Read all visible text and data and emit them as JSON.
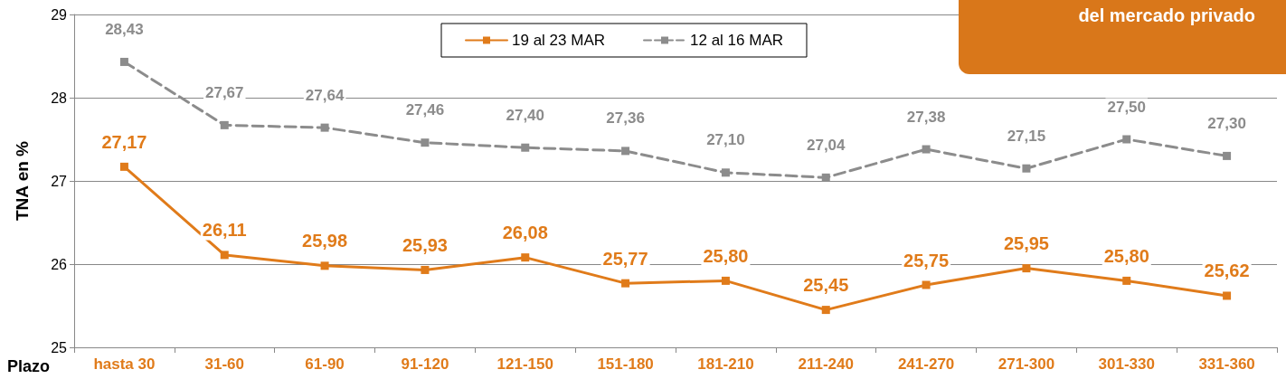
{
  "chart_data": {
    "type": "line",
    "title": "del mercado privado",
    "xlabel": "Plazo",
    "ylabel": "TNA en %",
    "categories": [
      "hasta 30",
      "31-60",
      "61-90",
      "91-120",
      "121-150",
      "151-180",
      "181-210",
      "211-240",
      "241-270",
      "271-300",
      "301-330",
      "331-360"
    ],
    "series": [
      {
        "name": "19 al 23 MAR",
        "color": "#e07b1a",
        "line_style": "solid",
        "values": [
          27.17,
          26.11,
          25.98,
          25.93,
          26.08,
          25.77,
          25.8,
          25.45,
          25.75,
          25.95,
          25.8,
          25.62
        ],
        "value_labels": [
          "27,17",
          "26,11",
          "25,98",
          "25,93",
          "26,08",
          "25,77",
          "25,80",
          "25,45",
          "25,75",
          "25,95",
          "25,80",
          "25,62"
        ]
      },
      {
        "name": "12 al 16 MAR",
        "color": "#8c8c8c",
        "line_style": "dashed",
        "values": [
          28.43,
          27.67,
          27.64,
          27.46,
          27.4,
          27.36,
          27.1,
          27.04,
          27.38,
          27.15,
          27.5,
          27.3
        ],
        "value_labels": [
          "28,43",
          "27,67",
          "27,64",
          "27,46",
          "27,40",
          "27,36",
          "27,10",
          "27,04",
          "27,38",
          "27,15",
          "27,50",
          "27,30"
        ]
      }
    ],
    "ylim": [
      25,
      29
    ],
    "yticks": [
      25,
      26,
      27,
      28,
      29
    ],
    "grid": "y",
    "legend": "top",
    "marker": "square"
  }
}
